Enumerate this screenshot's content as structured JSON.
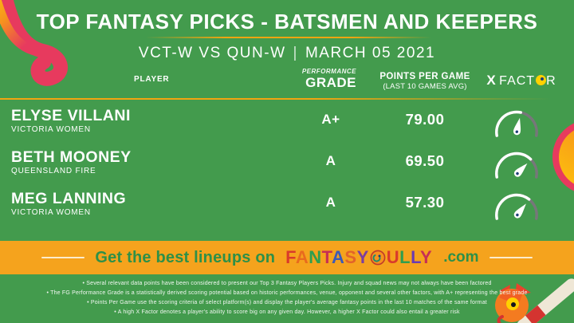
{
  "title": "TOP FANTASY PICKS - BATSMEN AND KEEPERS",
  "subtitle": {
    "matchup": "VCT-W VS QUN-W",
    "separator": "|",
    "date": "MARCH 05 2021"
  },
  "table": {
    "headers": {
      "player": "PLAYER",
      "grade_top": "PERFORMANCE",
      "grade_main": "GRADE",
      "points_main": "POINTS PER GAME",
      "points_sub": "(LAST 10 GAMES AVG)",
      "xfactor_x": "X",
      "xfactor_part1": "FACT",
      "xfactor_part2": "R"
    },
    "rows": [
      {
        "name": "ELYSE VILLANI",
        "team": "VICTORIA WOMEN",
        "grade": "A+",
        "points": "79.00",
        "xfactor_pct": 56
      },
      {
        "name": "BETH MOONEY",
        "team": "QUEENSLAND FIRE",
        "grade": "A",
        "points": "69.50",
        "xfactor_pct": 72
      },
      {
        "name": "MEG LANNING",
        "team": "VICTORIA WOMEN",
        "grade": "A",
        "points": "57.30",
        "xfactor_pct": 69
      }
    ]
  },
  "banner": {
    "prefix": "Get the best lineups on",
    "fantasy_letters": [
      {
        "ch": "F",
        "color": "#d93a2b"
      },
      {
        "ch": "A",
        "color": "#e86a1e"
      },
      {
        "ch": "N",
        "color": "#2f9e4f"
      },
      {
        "ch": "T",
        "color": "#c72f54"
      },
      {
        "ch": "A",
        "color": "#3b5ab8"
      },
      {
        "ch": "S",
        "color": "#e2632a"
      },
      {
        "ch": "Y",
        "color": "#7b3fa0"
      }
    ],
    "bully_letters": [
      {
        "ch": "U",
        "color": "#d93a2b"
      },
      {
        "ch": "L",
        "color": "#2f9e4f"
      },
      {
        "ch": "L",
        "color": "#6a3ab2"
      },
      {
        "ch": "Y",
        "color": "#c72f54"
      }
    ],
    "suffix": ".com"
  },
  "footnotes": [
    "• Several relevant data points have been considered to present our Top 3 Fantasy Players Picks. Injury and squad news may not always have been factored",
    "• The FG Performance Grade is a statistically derived scoring potential based on historic performances, venue, opponent and several other factors, with A+ representing the best grade",
    "• Points Per Game use the scoring criteria of select platform(s) and display the player's average fantasy points in the last 10 matches of the same format",
    "• A high X Factor denotes a player's ability to score big on any given day. However, a higher X Factor could also entail a greater risk"
  ],
  "colors": {
    "background_green": "#439b4d",
    "banner_orange": "#f5a31d",
    "gold_rule": "#f0a511",
    "banner_text_green": "#2e9048",
    "gauge_gray": "#77777a",
    "gauge_white": "#ffffff",
    "needle_dot_navy": "#1c3e77",
    "xfactor_dot_yellow": "#ffd100",
    "decor_crimson": "#e73a5e",
    "decor_orange": "#f6921e",
    "decor_yellow": "#fdc80f",
    "bat_cream": "#efe7d6",
    "bat_red": "#d43430"
  },
  "chart_data": {
    "type": "table",
    "title": "TOP FANTASY PICKS - BATSMEN AND KEEPERS",
    "subtitle": "VCT-W VS QUN-W | MARCH 05 2021",
    "columns": [
      "PLAYER",
      "TEAM",
      "PERFORMANCE GRADE",
      "POINTS PER GAME (LAST 10 GAMES AVG)",
      "X FACTOR (gauge fill %)"
    ],
    "rows": [
      [
        "ELYSE VILLANI",
        "VICTORIA WOMEN",
        "A+",
        79.0,
        56
      ],
      [
        "BETH MOONEY",
        "QUEENSLAND FIRE",
        "A",
        69.5,
        72
      ],
      [
        "MEG LANNING",
        "VICTORIA WOMEN",
        "A",
        57.3,
        69
      ]
    ]
  }
}
